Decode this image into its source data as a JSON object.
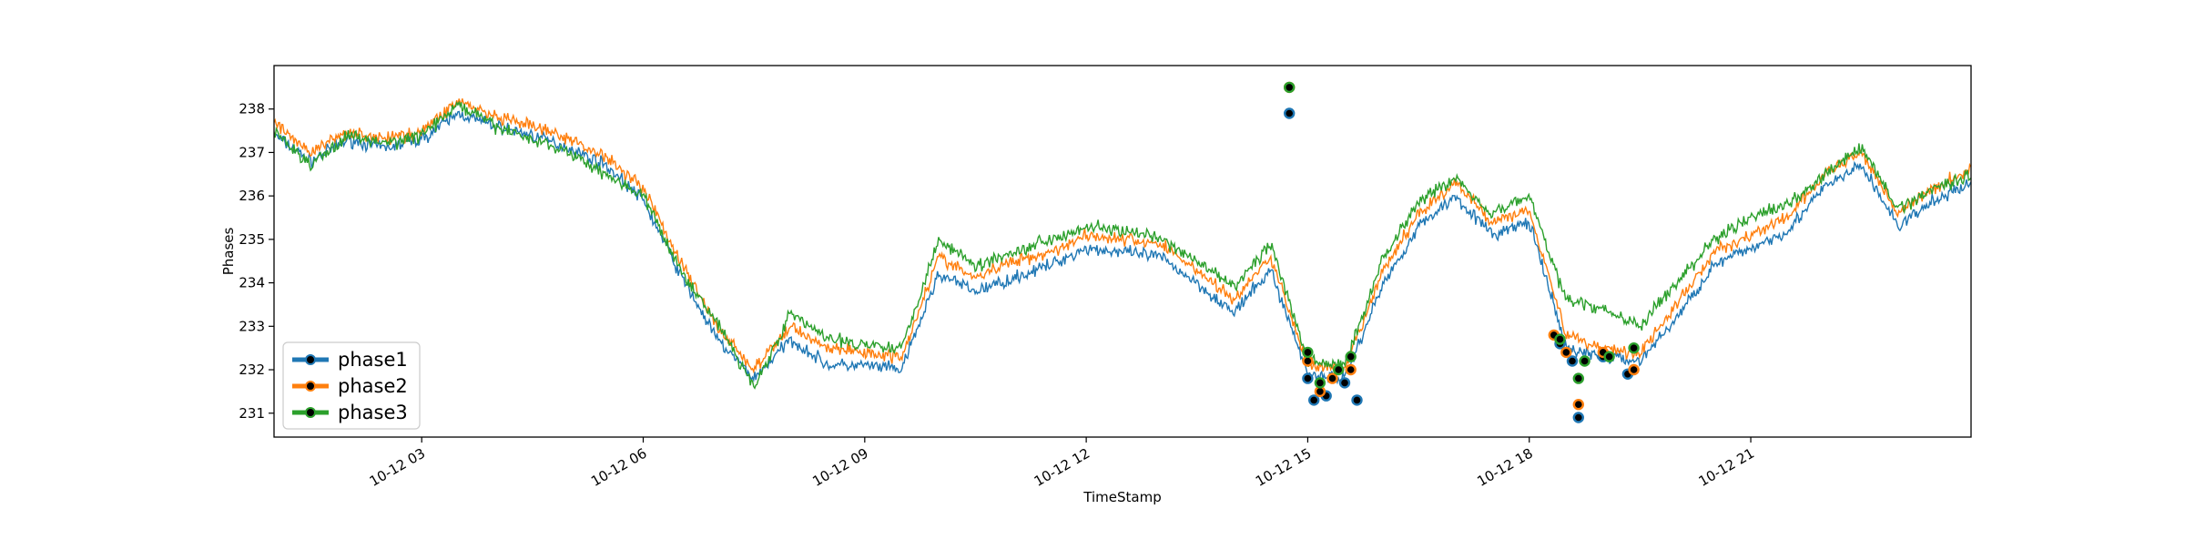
{
  "chart_data": {
    "type": "line",
    "title": "",
    "xlabel": "TimeStamp",
    "ylabel": "Phases",
    "x_range": [
      "10-12 01:00",
      "10-12 23:59"
    ],
    "ylim": [
      230.45,
      239.0
    ],
    "yticks": [
      231,
      232,
      233,
      234,
      235,
      236,
      237,
      238
    ],
    "xticks": [
      "10-12 03",
      "10-12 06",
      "10-12 09",
      "10-12 12",
      "10-12 15",
      "10-12 18",
      "10-12 21"
    ],
    "grid": false,
    "legend": {
      "position": "lower-left",
      "marker": "circle"
    },
    "series": [
      {
        "name": "phase1",
        "color": "#1f77b4",
        "points": [
          [
            "10-12 01:00",
            237.4
          ],
          [
            "10-12 01:30",
            236.8
          ],
          [
            "10-12 02:00",
            237.3
          ],
          [
            "10-12 02:30",
            237.1
          ],
          [
            "10-12 03:00",
            237.3
          ],
          [
            "10-12 03:30",
            237.9
          ],
          [
            "10-12 04:00",
            237.6
          ],
          [
            "10-12 04:30",
            237.4
          ],
          [
            "10-12 05:00",
            237.1
          ],
          [
            "10-12 05:30",
            236.7
          ],
          [
            "10-12 06:00",
            235.9
          ],
          [
            "10-12 06:30",
            234.2
          ],
          [
            "10-12 07:00",
            232.7
          ],
          [
            "10-12 07:30",
            231.8
          ],
          [
            "10-12 08:00",
            232.7
          ],
          [
            "10-12 08:30",
            232.1
          ],
          [
            "10-12 09:00",
            232.1
          ],
          [
            "10-12 09:30",
            232.0
          ],
          [
            "10-12 10:00",
            234.2
          ],
          [
            "10-12 10:30",
            233.8
          ],
          [
            "10-12 11:00",
            234.1
          ],
          [
            "10-12 11:30",
            234.4
          ],
          [
            "10-12 12:00",
            234.8
          ],
          [
            "10-12 12:30",
            234.7
          ],
          [
            "10-12 13:00",
            234.6
          ],
          [
            "10-12 13:30",
            234.0
          ],
          [
            "10-12 14:00",
            233.3
          ],
          [
            "10-12 14:30",
            234.3
          ],
          [
            "10-12 15:00",
            231.9
          ],
          [
            "10-12 15:30",
            231.8
          ],
          [
            "10-12 16:00",
            233.9
          ],
          [
            "10-12 16:30",
            235.3
          ],
          [
            "10-12 17:00",
            236.0
          ],
          [
            "10-12 17:30",
            235.1
          ],
          [
            "10-12 18:00",
            235.4
          ],
          [
            "10-12 18:30",
            232.5
          ],
          [
            "10-12 19:00",
            232.3
          ],
          [
            "10-12 19:30",
            232.2
          ],
          [
            "10-12 20:00",
            233.2
          ],
          [
            "10-12 20:30",
            234.4
          ],
          [
            "10-12 21:00",
            234.8
          ],
          [
            "10-12 21:30",
            235.2
          ],
          [
            "10-12 22:00",
            236.2
          ],
          [
            "10-12 22:30",
            236.7
          ],
          [
            "10-12 23:00",
            235.3
          ],
          [
            "10-12 23:30",
            235.9
          ],
          [
            "10-12 23:59",
            236.3
          ]
        ],
        "highlighted_points": [
          [
            "10-12 14:45",
            237.9
          ],
          [
            "10-12 15:00",
            231.8
          ],
          [
            "10-12 15:05",
            231.3
          ],
          [
            "10-12 15:15",
            231.4
          ],
          [
            "10-12 15:30",
            231.7
          ],
          [
            "10-12 15:40",
            231.3
          ],
          [
            "10-12 18:25",
            232.6
          ],
          [
            "10-12 18:35",
            232.2
          ],
          [
            "10-12 18:40",
            230.9
          ],
          [
            "10-12 19:00",
            232.3
          ],
          [
            "10-12 19:20",
            231.9
          ]
        ]
      },
      {
        "name": "phase2",
        "color": "#ff7f0e",
        "points": [
          [
            "10-12 01:00",
            237.7
          ],
          [
            "10-12 01:30",
            237.0
          ],
          [
            "10-12 02:00",
            237.5
          ],
          [
            "10-12 02:30",
            237.3
          ],
          [
            "10-12 03:00",
            237.5
          ],
          [
            "10-12 03:30",
            238.2
          ],
          [
            "10-12 04:00",
            237.8
          ],
          [
            "10-12 04:30",
            237.6
          ],
          [
            "10-12 05:00",
            237.3
          ],
          [
            "10-12 05:30",
            236.9
          ],
          [
            "10-12 06:00",
            236.2
          ],
          [
            "10-12 06:30",
            234.5
          ],
          [
            "10-12 07:00",
            233.0
          ],
          [
            "10-12 07:30",
            232.0
          ],
          [
            "10-12 08:00",
            233.0
          ],
          [
            "10-12 08:30",
            232.5
          ],
          [
            "10-12 09:00",
            232.4
          ],
          [
            "10-12 09:30",
            232.3
          ],
          [
            "10-12 10:00",
            234.6
          ],
          [
            "10-12 10:30",
            234.1
          ],
          [
            "10-12 11:00",
            234.5
          ],
          [
            "10-12 11:30",
            234.7
          ],
          [
            "10-12 12:00",
            235.1
          ],
          [
            "10-12 12:30",
            235.0
          ],
          [
            "10-12 13:00",
            234.9
          ],
          [
            "10-12 13:30",
            234.3
          ],
          [
            "10-12 14:00",
            233.6
          ],
          [
            "10-12 14:30",
            234.6
          ],
          [
            "10-12 15:00",
            232.1
          ],
          [
            "10-12 15:30",
            232.0
          ],
          [
            "10-12 16:00",
            234.2
          ],
          [
            "10-12 16:30",
            235.6
          ],
          [
            "10-12 17:00",
            236.3
          ],
          [
            "10-12 17:30",
            235.4
          ],
          [
            "10-12 18:00",
            235.7
          ],
          [
            "10-12 18:30",
            232.8
          ],
          [
            "10-12 19:00",
            232.5
          ],
          [
            "10-12 19:30",
            232.4
          ],
          [
            "10-12 20:00",
            233.5
          ],
          [
            "10-12 20:30",
            234.7
          ],
          [
            "10-12 21:00",
            235.1
          ],
          [
            "10-12 21:30",
            235.5
          ],
          [
            "10-12 22:00",
            236.5
          ],
          [
            "10-12 22:30",
            237.0
          ],
          [
            "10-12 23:00",
            235.6
          ],
          [
            "10-12 23:30",
            236.2
          ],
          [
            "10-12 23:59",
            236.6
          ]
        ],
        "highlighted_points": [
          [
            "10-12 14:45",
            238.5
          ],
          [
            "10-12 15:00",
            232.2
          ],
          [
            "10-12 15:10",
            231.5
          ],
          [
            "10-12 15:20",
            231.8
          ],
          [
            "10-12 15:35",
            232.0
          ],
          [
            "10-12 18:20",
            232.8
          ],
          [
            "10-12 18:30",
            232.4
          ],
          [
            "10-12 18:40",
            231.2
          ],
          [
            "10-12 19:00",
            232.4
          ],
          [
            "10-12 19:25",
            232.0
          ]
        ]
      },
      {
        "name": "phase3",
        "color": "#2ca02c",
        "points": [
          [
            "10-12 01:00",
            237.5
          ],
          [
            "10-12 01:30",
            236.7
          ],
          [
            "10-12 02:00",
            237.4
          ],
          [
            "10-12 02:30",
            237.2
          ],
          [
            "10-12 03:00",
            237.4
          ],
          [
            "10-12 03:30",
            238.1
          ],
          [
            "10-12 04:00",
            237.6
          ],
          [
            "10-12 04:30",
            237.3
          ],
          [
            "10-12 05:00",
            237.0
          ],
          [
            "10-12 05:30",
            236.5
          ],
          [
            "10-12 06:00",
            236.0
          ],
          [
            "10-12 06:30",
            234.3
          ],
          [
            "10-12 07:00",
            233.1
          ],
          [
            "10-12 07:30",
            231.6
          ],
          [
            "10-12 08:00",
            233.3
          ],
          [
            "10-12 08:30",
            232.7
          ],
          [
            "10-12 09:00",
            232.6
          ],
          [
            "10-12 09:30",
            232.5
          ],
          [
            "10-12 10:00",
            235.0
          ],
          [
            "10-12 10:30",
            234.4
          ],
          [
            "10-12 11:00",
            234.7
          ],
          [
            "10-12 11:30",
            235.0
          ],
          [
            "10-12 12:00",
            235.3
          ],
          [
            "10-12 12:30",
            235.2
          ],
          [
            "10-12 13:00",
            235.0
          ],
          [
            "10-12 13:30",
            234.5
          ],
          [
            "10-12 14:00",
            233.9
          ],
          [
            "10-12 14:30",
            234.9
          ],
          [
            "10-12 15:00",
            232.2
          ],
          [
            "10-12 15:30",
            232.1
          ],
          [
            "10-12 16:00",
            234.5
          ],
          [
            "10-12 16:30",
            235.9
          ],
          [
            "10-12 17:00",
            236.4
          ],
          [
            "10-12 17:30",
            235.6
          ],
          [
            "10-12 18:00",
            236.0
          ],
          [
            "10-12 18:30",
            233.6
          ],
          [
            "10-12 19:00",
            233.4
          ],
          [
            "10-12 19:30",
            233.0
          ],
          [
            "10-12 20:00",
            234.0
          ],
          [
            "10-12 20:30",
            235.0
          ],
          [
            "10-12 21:00",
            235.5
          ],
          [
            "10-12 21:30",
            235.8
          ],
          [
            "10-12 22:00",
            236.5
          ],
          [
            "10-12 22:30",
            237.1
          ],
          [
            "10-12 23:00",
            235.7
          ],
          [
            "10-12 23:30",
            236.2
          ],
          [
            "10-12 23:59",
            236.5
          ]
        ],
        "highlighted_points": [
          [
            "10-12 14:45",
            238.5
          ],
          [
            "10-12 15:00",
            232.4
          ],
          [
            "10-12 15:10",
            231.7
          ],
          [
            "10-12 15:25",
            232.0
          ],
          [
            "10-12 15:35",
            232.3
          ],
          [
            "10-12 18:25",
            232.7
          ],
          [
            "10-12 18:40",
            231.8
          ],
          [
            "10-12 18:45",
            232.2
          ],
          [
            "10-12 19:05",
            232.3
          ],
          [
            "10-12 19:25",
            232.5
          ]
        ]
      }
    ]
  }
}
